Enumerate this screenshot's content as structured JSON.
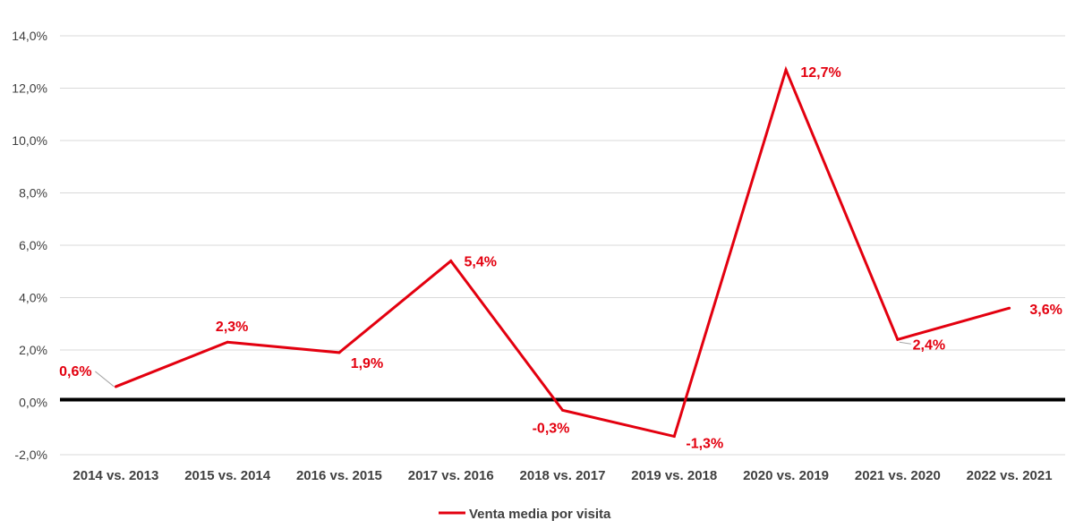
{
  "chart_data": {
    "type": "line",
    "categories": [
      "2014 vs. 2013",
      "2015 vs. 2014",
      "2016 vs. 2015",
      "2017 vs. 2016",
      "2018 vs. 2017",
      "2019 vs. 2018",
      "2020 vs. 2019",
      "2021 vs. 2020",
      "2022 vs. 2021"
    ],
    "series": [
      {
        "name": "Venta media por visita",
        "values": [
          0.6,
          2.3,
          1.9,
          5.4,
          -0.3,
          -1.3,
          12.7,
          2.4,
          3.6
        ],
        "labels": [
          "0,6%",
          "2,3%",
          "1,9%",
          "5,4%",
          "-0,3%",
          "-1,3%",
          "12,7%",
          "2,4%",
          "3,6%"
        ],
        "color": "#e3000f"
      }
    ],
    "ylim": [
      -2,
      14
    ],
    "yticks": [
      14,
      12,
      10,
      8,
      6,
      4,
      2,
      0,
      -2
    ],
    "ytick_labels": [
      "14,0%",
      "12,0%",
      "10,0%",
      "8,0%",
      "6,0%",
      "4,0%",
      "2,0%",
      "0,0%",
      "-2,0%"
    ],
    "grid": true,
    "zero_line": true,
    "legend": "bottom-center",
    "title": "",
    "xlabel": "",
    "ylabel": ""
  },
  "colors": {
    "series": "#e3000f",
    "grid": "#d9d9d9",
    "axis": "#000000",
    "text": "#404040"
  }
}
